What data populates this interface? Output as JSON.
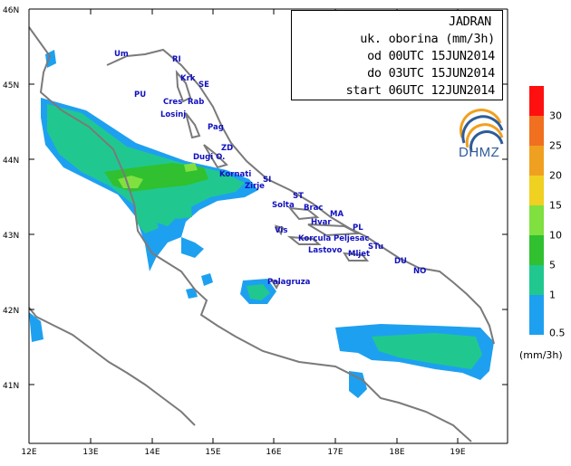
{
  "info": {
    "line1": "JADRAN",
    "line2": "uk. oborina (mm/3h)",
    "line3": "od 00UTC 15JUN2014",
    "line4": "do 03UTC 15JUN2014",
    "line5": "start 06UTC 12JUN2014"
  },
  "logo": {
    "text": "DHMZ"
  },
  "legend": {
    "unit": "(mm/3h)",
    "levels": [
      {
        "value": "30",
        "color": "#ff1010"
      },
      {
        "value": "25",
        "color": "#f07020"
      },
      {
        "value": "20",
        "color": "#f0a020"
      },
      {
        "value": "15",
        "color": "#f0d020"
      },
      {
        "value": "10",
        "color": "#80e040"
      },
      {
        "value": "5",
        "color": "#30c030"
      },
      {
        "value": "1",
        "color": "#20c890"
      },
      {
        "value": "0.5",
        "color": "#1ea0f0"
      }
    ]
  },
  "axes": {
    "x_ticks": [
      "12E",
      "13E",
      "14E",
      "15E",
      "16E",
      "17E",
      "18E",
      "19E"
    ],
    "y_ticks": [
      "46N",
      "45N",
      "44N",
      "43N",
      "42N",
      "41N"
    ]
  },
  "places": [
    {
      "name": "Um"
    },
    {
      "name": "RI"
    },
    {
      "name": "Krk"
    },
    {
      "name": "SE"
    },
    {
      "name": "PU"
    },
    {
      "name": "Cres"
    },
    {
      "name": "Rab"
    },
    {
      "name": "Losinj"
    },
    {
      "name": "Pag"
    },
    {
      "name": "ZD"
    },
    {
      "name": "Dugi O."
    },
    {
      "name": "Kornati"
    },
    {
      "name": "SI"
    },
    {
      "name": "Zirje"
    },
    {
      "name": "ST"
    },
    {
      "name": "Solta"
    },
    {
      "name": "Brac"
    },
    {
      "name": "MA"
    },
    {
      "name": "Hvar"
    },
    {
      "name": "PL"
    },
    {
      "name": "Vis"
    },
    {
      "name": "Korcula"
    },
    {
      "name": "Peljesac"
    },
    {
      "name": "Lastovo"
    },
    {
      "name": "Mljet"
    },
    {
      "name": "STu"
    },
    {
      "name": "DU"
    },
    {
      "name": "NO"
    },
    {
      "name": "Palagruza"
    }
  ]
}
